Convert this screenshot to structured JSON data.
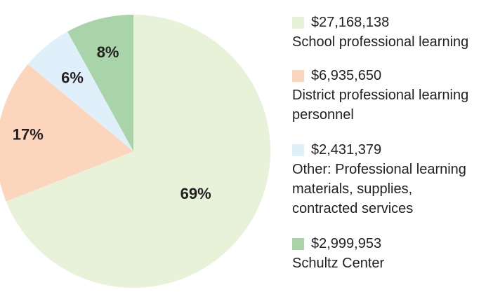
{
  "chart_data": {
    "type": "pie",
    "title": "",
    "start_angle_deg": 0,
    "direction": "clockwise",
    "slices": [
      {
        "label": "69%",
        "percent": 69,
        "amount": "$27,168,138",
        "description": "School professional learning",
        "color": "#e8f2d9"
      },
      {
        "label": "17%",
        "percent": 17,
        "amount": "$6,935,650",
        "description": "District professional learning\npersonnel",
        "color": "#fbd6bd"
      },
      {
        "label": "6%",
        "percent": 6,
        "amount": "$2,431,379",
        "description": "Other: Professional learning\nmaterials, supplies,\ncontracted services",
        "color": "#dff0fb"
      },
      {
        "label": "8%",
        "percent": 8,
        "amount": "$2,999,953",
        "description": "Schultz Center",
        "color": "#a9d3a9"
      }
    ],
    "legend_position": "right"
  }
}
